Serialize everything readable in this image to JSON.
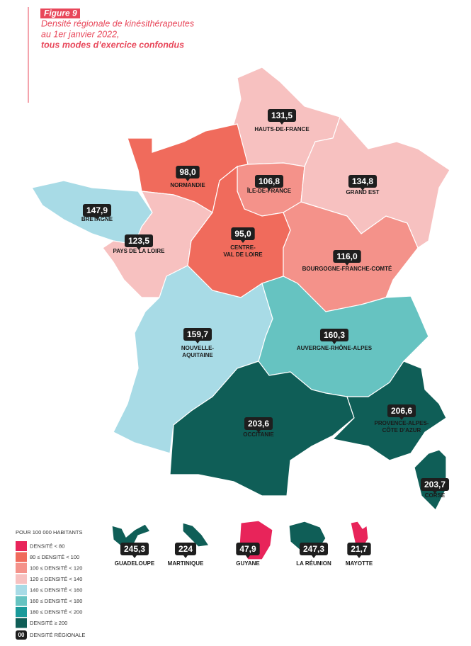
{
  "figure_label": "Figure 9",
  "title": [
    "Densité régionale de kinésithérapeutes",
    "au 1er janvier 2022,",
    "tous modes d’exercice confondus"
  ],
  "regions": [
    {
      "name": [
        "HAUTS-DE-FRANCE"
      ],
      "density": "131,5",
      "color": "#f7c1c0"
    },
    {
      "name": [
        "NORMANDIE"
      ],
      "density": "98,0",
      "color": "#f06b5c"
    },
    {
      "name": [
        "ÎLE-DE-FRANCE"
      ],
      "density": "106,8",
      "color": "#f4928a"
    },
    {
      "name": [
        "GRAND EST"
      ],
      "density": "134,8",
      "color": "#f7c1c0"
    },
    {
      "name": [
        "BRETAGNE"
      ],
      "density": "147,9",
      "color": "#a8dbe6"
    },
    {
      "name": [
        "PAYS DE LA LOIRE"
      ],
      "density": "123,5",
      "color": "#f7c1c0"
    },
    {
      "name": [
        "CENTRE-",
        "VAL DE LOIRE"
      ],
      "density": "95,0",
      "color": "#f06b5c"
    },
    {
      "name": [
        "BOURGOGNE-FRANCHE-COMTÉ"
      ],
      "density": "116,0",
      "color": "#f4928a"
    },
    {
      "name": [
        "NOUVELLE-",
        "AQUITAINE"
      ],
      "density": "159,7",
      "color": "#a8dbe6"
    },
    {
      "name": [
        "AUVERGNE-RHÔNE-ALPES"
      ],
      "density": "160,3",
      "color": "#66c3c1"
    },
    {
      "name": [
        "OCCITANIE"
      ],
      "density": "203,6",
      "color": "#0f5e57"
    },
    {
      "name": [
        "PROVENCE-ALPES-",
        "CÔTE D’AZUR"
      ],
      "density": "206,6",
      "color": "#0f5e57"
    },
    {
      "name": [
        "CORSE"
      ],
      "density": "203,7",
      "color": "#0f5e57"
    },
    {
      "name": [
        "GUADELOUPE"
      ],
      "density": "245,3",
      "color": "#0f5e57"
    },
    {
      "name": [
        "MARTINIQUE"
      ],
      "density": "224",
      "color": "#0f5e57"
    },
    {
      "name": [
        "GUYANE"
      ],
      "density": "47,9",
      "color": "#e8245a"
    },
    {
      "name": [
        "LA RÉUNION"
      ],
      "density": "247,3",
      "color": "#0f5e57"
    },
    {
      "name": [
        "MAYOTTE"
      ],
      "density": "21,7",
      "color": "#e8245a"
    }
  ],
  "legend": {
    "title": "POUR 100 000 HABITANTS",
    "items": [
      {
        "label": "DENSITÉ < 80",
        "color": "#e8245a"
      },
      {
        "label": "80 ≤ DENSITÉ < 100",
        "color": "#f06b5c"
      },
      {
        "label": "100 ≤ DENSITÉ < 120",
        "color": "#f4928a"
      },
      {
        "label": "120 ≤ DENSITÉ < 140",
        "color": "#f7c1c0"
      },
      {
        "label": "140 ≤ DENSITÉ < 160",
        "color": "#a8dbe6"
      },
      {
        "label": "160 ≤ DENSITÉ < 180",
        "color": "#66c3c1"
      },
      {
        "label": "180 ≤ DENSITÉ < 200",
        "color": "#1a9a9a"
      },
      {
        "label": "DENSITÉ ≥ 200",
        "color": "#0f5e57"
      }
    ],
    "badge_sample": "00",
    "badge_label": "DENSITÉ RÉGIONALE"
  }
}
